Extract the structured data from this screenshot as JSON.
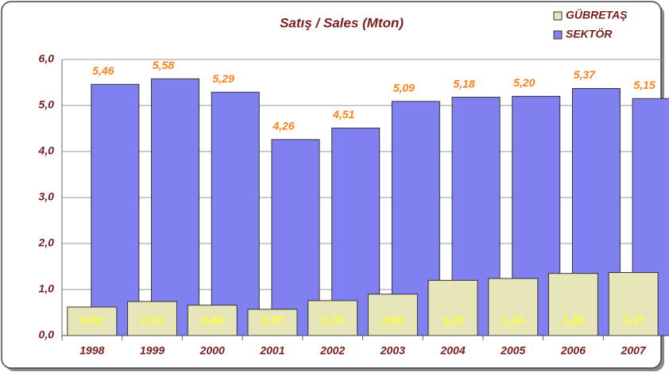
{
  "chart_data": {
    "type": "bar",
    "title": "Satış / Sales (Mton)",
    "categories": [
      "1998",
      "1999",
      "2000",
      "2001",
      "2002",
      "2003",
      "2004",
      "2005",
      "2006",
      "2007"
    ],
    "series": [
      {
        "name": "GÜBRETAŞ",
        "color": "#e6e6b8",
        "values": [
          0.62,
          0.74,
          0.66,
          0.57,
          0.76,
          0.9,
          1.2,
          1.24,
          1.35,
          1.37
        ],
        "value_labels": [
          "0,62",
          "0,74",
          "0,66",
          "0,57",
          "0,76",
          "0,90",
          "1,20",
          "1,24",
          "1,35",
          "1,37"
        ]
      },
      {
        "name": "SEKTÖR",
        "color": "#8080f0",
        "values": [
          5.46,
          5.58,
          5.29,
          4.26,
          4.51,
          5.09,
          5.18,
          5.2,
          5.37,
          5.15
        ],
        "value_labels": [
          "5,46",
          "5,58",
          "5,29",
          "4,26",
          "4,51",
          "5,09",
          "5,18",
          "5,20",
          "5,37",
          "5,15"
        ]
      }
    ],
    "ylim": [
      0,
      6
    ],
    "yticks": [
      {
        "value": 0,
        "label": "0,0"
      },
      {
        "value": 1,
        "label": "1,0"
      },
      {
        "value": 2,
        "label": "2,0"
      },
      {
        "value": 3,
        "label": "3,0"
      },
      {
        "value": 4,
        "label": "4,0"
      },
      {
        "value": 5,
        "label": "5,0"
      },
      {
        "value": 6,
        "label": "6,0"
      }
    ],
    "grid": true,
    "legend": "top-right"
  }
}
